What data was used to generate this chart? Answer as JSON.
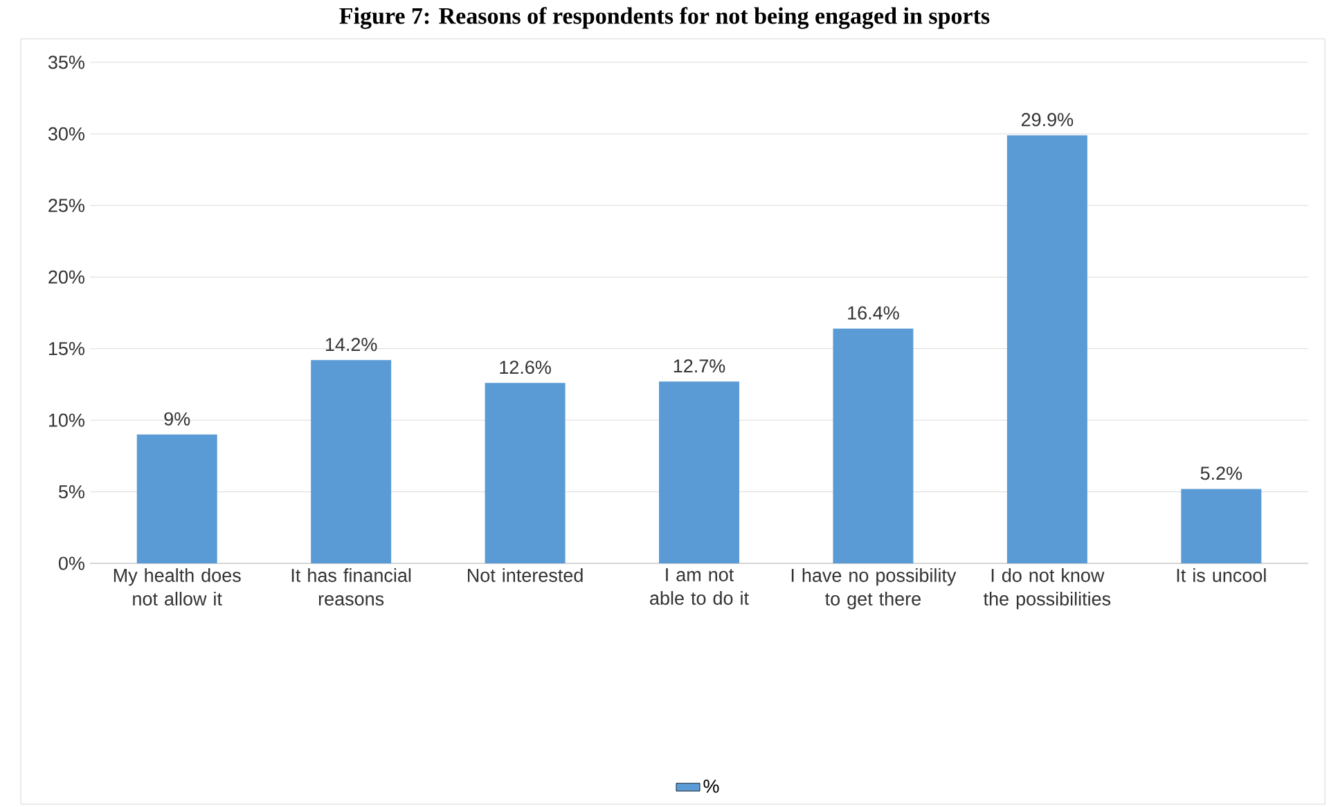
{
  "chart_data": {
    "type": "bar",
    "title": "Figure 7: Reasons of respondents for not being engaged in sports",
    "categories": [
      "My health does not allow it",
      "It has financial reasons",
      "Not interested",
      "I am not able to do it",
      "I have no possibility to get there",
      "I do not know the possibilities",
      "It is uncool"
    ],
    "series": [
      {
        "name": "%",
        "color": "#5b9bd5",
        "values": [
          9,
          14.2,
          12.6,
          12.7,
          16.4,
          29.9,
          5.2
        ],
        "value_labels": [
          "9%",
          "14.2%",
          "12.6%",
          "12.7%",
          "16.4%",
          "29.9%",
          "5.2%"
        ]
      }
    ],
    "ylim": [
      0,
      35
    ],
    "yticks": [
      {
        "value": 0,
        "label": "0%"
      },
      {
        "value": 5,
        "label": "5%"
      },
      {
        "value": 10,
        "label": "10%"
      },
      {
        "value": 15,
        "label": "15%"
      },
      {
        "value": 20,
        "label": "20%"
      },
      {
        "value": 25,
        "label": "25%"
      },
      {
        "value": 30,
        "label": "30%"
      },
      {
        "value": 35,
        "label": "35%"
      }
    ],
    "grid": "y",
    "legend": "bottom"
  }
}
